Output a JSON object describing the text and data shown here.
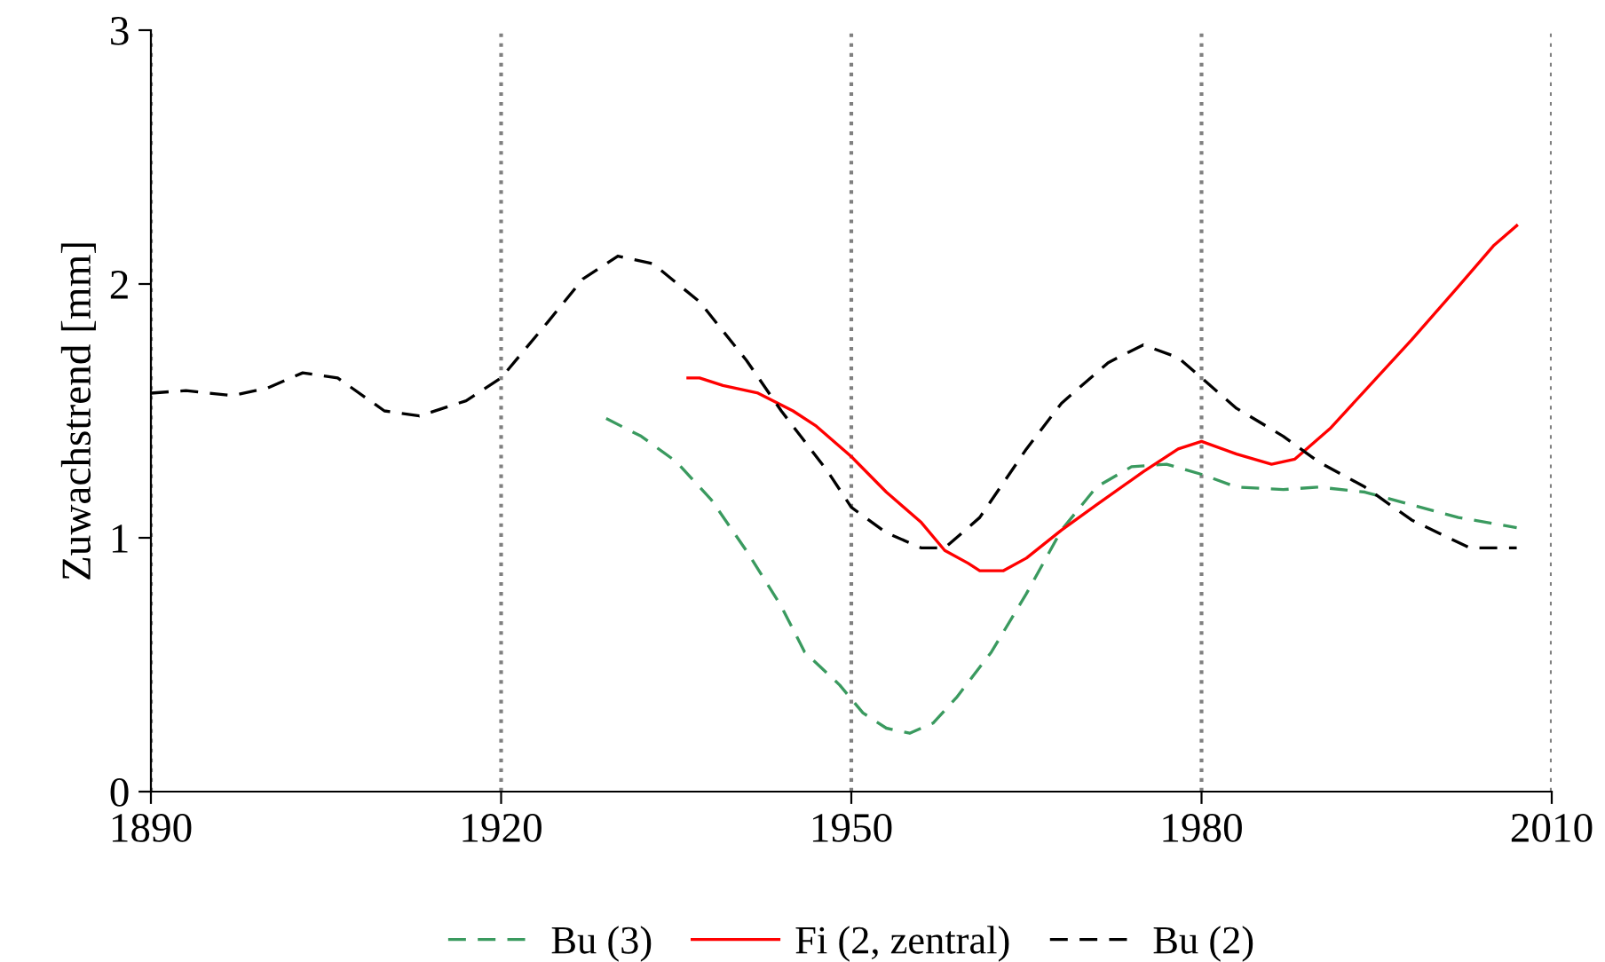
{
  "chart_data": {
    "type": "line",
    "ylabel": "Zuwachstrend [mm]",
    "xlim": [
      1890,
      2010
    ],
    "xticks": [
      1890,
      1920,
      1950,
      1980,
      2010
    ],
    "ylim": [
      0,
      3
    ],
    "yticks": [
      0,
      1,
      2,
      3
    ],
    "grid": "x",
    "legend": "bottom",
    "marker": "none",
    "series": [
      {
        "name": "Bu (3)",
        "color": "#3a9a5f",
        "line_style": "dashed",
        "x": [
          1929,
          1932,
          1935,
          1938,
          1941,
          1944,
          1946,
          1949,
          1951,
          1953,
          1955,
          1957,
          1959,
          1962,
          1965,
          1968,
          1971,
          1974,
          1977,
          1980,
          1983,
          1987,
          1990,
          1994,
          1998,
          2002,
          2007
        ],
        "values": [
          1.47,
          1.4,
          1.3,
          1.15,
          0.95,
          0.73,
          0.55,
          0.42,
          0.31,
          0.25,
          0.23,
          0.27,
          0.37,
          0.55,
          0.78,
          1.03,
          1.2,
          1.28,
          1.29,
          1.25,
          1.2,
          1.19,
          1.2,
          1.18,
          1.13,
          1.08,
          1.04
        ]
      },
      {
        "name": "Fi (2, zentral)",
        "color": "#ff0000",
        "line_style": "solid",
        "x": [
          1936,
          1937,
          1939,
          1942,
          1945,
          1947,
          1950,
          1953,
          1956,
          1958,
          1960,
          1961,
          1963,
          1965,
          1968,
          1971,
          1975,
          1978,
          1980,
          1983,
          1986,
          1988,
          1991,
          1994,
          1998,
          2002,
          2005,
          2007
        ],
        "values": [
          1.63,
          1.63,
          1.6,
          1.57,
          1.5,
          1.44,
          1.32,
          1.18,
          1.06,
          0.95,
          0.9,
          0.87,
          0.87,
          0.92,
          1.03,
          1.13,
          1.26,
          1.35,
          1.38,
          1.33,
          1.29,
          1.31,
          1.43,
          1.58,
          1.78,
          1.99,
          2.15,
          2.23
        ]
      },
      {
        "name": "Bu (2)",
        "color": "#000000",
        "line_style": "dashed",
        "x": [
          1890,
          1893,
          1897,
          1900,
          1903,
          1906,
          1910,
          1913,
          1917,
          1920,
          1924,
          1927,
          1930,
          1933,
          1937,
          1941,
          1944,
          1948,
          1950,
          1953,
          1956,
          1958,
          1961,
          1965,
          1968,
          1972,
          1975,
          1978,
          1980,
          1983,
          1987,
          1990,
          1994,
          1998,
          2003,
          2007
        ],
        "values": [
          1.57,
          1.58,
          1.56,
          1.59,
          1.65,
          1.63,
          1.5,
          1.48,
          1.54,
          1.63,
          1.85,
          2.02,
          2.11,
          2.08,
          1.93,
          1.7,
          1.5,
          1.26,
          1.12,
          1.02,
          0.96,
          0.96,
          1.08,
          1.35,
          1.53,
          1.69,
          1.76,
          1.71,
          1.63,
          1.51,
          1.4,
          1.3,
          1.2,
          1.07,
          0.96,
          0.96
        ]
      }
    ]
  }
}
